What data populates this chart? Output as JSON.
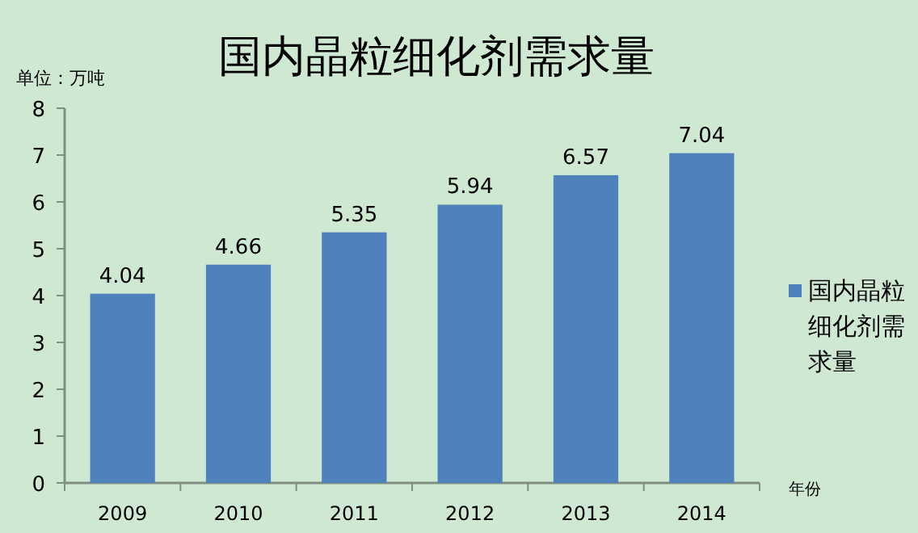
{
  "chart_data": {
    "type": "bar",
    "title": "国内晶粒细化剂需求量",
    "ylabel": "单位：万吨",
    "xlabel": "年份",
    "categories": [
      "2009",
      "2010",
      "2011",
      "2012",
      "2013",
      "2014"
    ],
    "series": [
      {
        "name": "国内晶粒细化剂需求量",
        "color": "#4f81bd",
        "values": [
          4.04,
          4.66,
          5.35,
          5.94,
          6.57,
          7.04
        ]
      }
    ],
    "ylim": [
      0,
      8
    ],
    "yticks": [
      0,
      1,
      2,
      3,
      4,
      5,
      6,
      7,
      8
    ],
    "data_labels": true,
    "grid": false,
    "legend": "right"
  }
}
